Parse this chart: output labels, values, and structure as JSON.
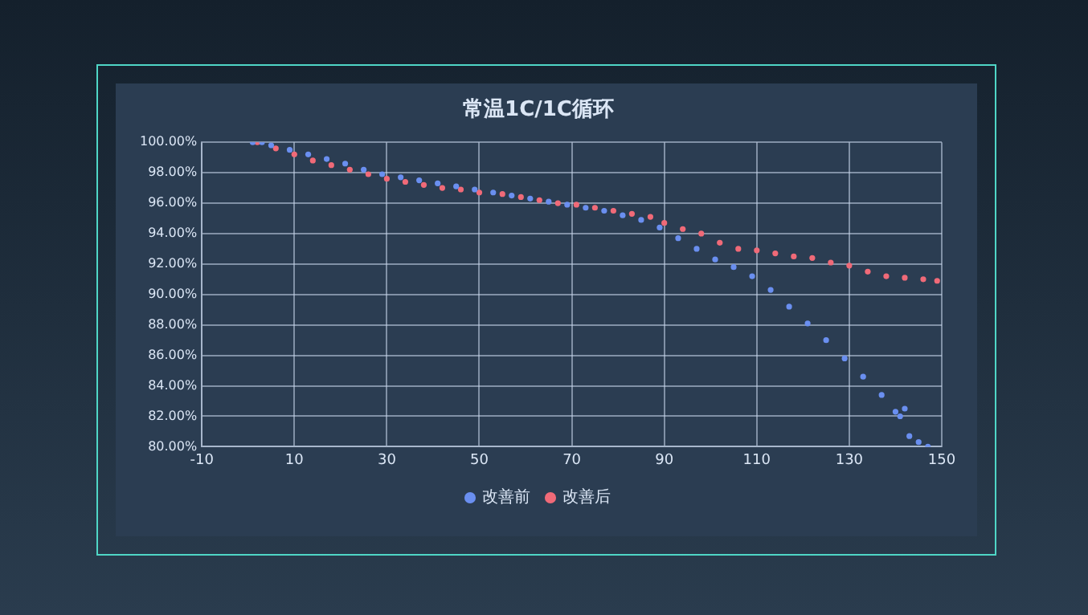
{
  "chart_data": {
    "type": "scatter",
    "title": "常温1C/1C循环",
    "marker": "circle",
    "grid": true,
    "legend": "bottom",
    "xlim": [
      -10,
      150
    ],
    "xticks": [
      -10,
      10,
      30,
      50,
      70,
      90,
      110,
      130,
      150
    ],
    "ylim": [
      80,
      100
    ],
    "yticks": [
      {
        "value": 80,
        "label": "80.00%"
      },
      {
        "value": 82,
        "label": "82.00%"
      },
      {
        "value": 84,
        "label": "84.00%"
      },
      {
        "value": 86,
        "label": "86.00%"
      },
      {
        "value": 88,
        "label": "88.00%"
      },
      {
        "value": 90,
        "label": "90.00%"
      },
      {
        "value": 92,
        "label": "92.00%"
      },
      {
        "value": 94,
        "label": "94.00%"
      },
      {
        "value": 96,
        "label": "96.00%"
      },
      {
        "value": 98,
        "label": "98.00%"
      },
      {
        "value": 100,
        "label": "100.00%"
      }
    ],
    "series": [
      {
        "name": "改善前",
        "color": "#6a8ff0",
        "x": [
          1,
          3,
          5,
          9,
          13,
          17,
          21,
          25,
          29,
          33,
          37,
          41,
          45,
          49,
          53,
          57,
          61,
          65,
          69,
          73,
          77,
          81,
          85,
          89,
          93,
          97,
          101,
          105,
          109,
          113,
          117,
          121,
          125,
          129,
          133,
          137,
          140,
          141,
          142,
          143,
          145,
          147
        ],
        "values": [
          100,
          100,
          99.8,
          99.5,
          99.2,
          98.9,
          98.6,
          98.2,
          97.9,
          97.7,
          97.5,
          97.3,
          97.1,
          96.9,
          96.7,
          96.5,
          96.3,
          96.1,
          95.9,
          95.7,
          95.5,
          95.2,
          94.9,
          94.4,
          93.7,
          93.0,
          92.3,
          91.8,
          91.2,
          90.3,
          89.2,
          88.1,
          87.0,
          85.8,
          84.6,
          83.4,
          82.3,
          82.0,
          82.5,
          80.7,
          80.3,
          80.0
        ]
      },
      {
        "name": "改善后",
        "color": "#f06a78",
        "x": [
          2,
          6,
          10,
          14,
          18,
          22,
          26,
          30,
          34,
          38,
          42,
          46,
          50,
          55,
          59,
          63,
          67,
          71,
          75,
          79,
          83,
          87,
          90,
          94,
          98,
          102,
          106,
          110,
          114,
          118,
          122,
          126,
          130,
          134,
          138,
          142,
          146,
          149
        ],
        "values": [
          100,
          99.6,
          99.2,
          98.8,
          98.5,
          98.2,
          97.9,
          97.6,
          97.4,
          97.2,
          97.0,
          96.9,
          96.7,
          96.6,
          96.4,
          96.2,
          96.0,
          95.9,
          95.7,
          95.5,
          95.3,
          95.1,
          94.7,
          94.3,
          94.0,
          93.4,
          93.0,
          92.9,
          92.7,
          92.5,
          92.4,
          92.1,
          91.9,
          91.5,
          91.2,
          91.1,
          91.0,
          90.9
        ]
      }
    ]
  }
}
